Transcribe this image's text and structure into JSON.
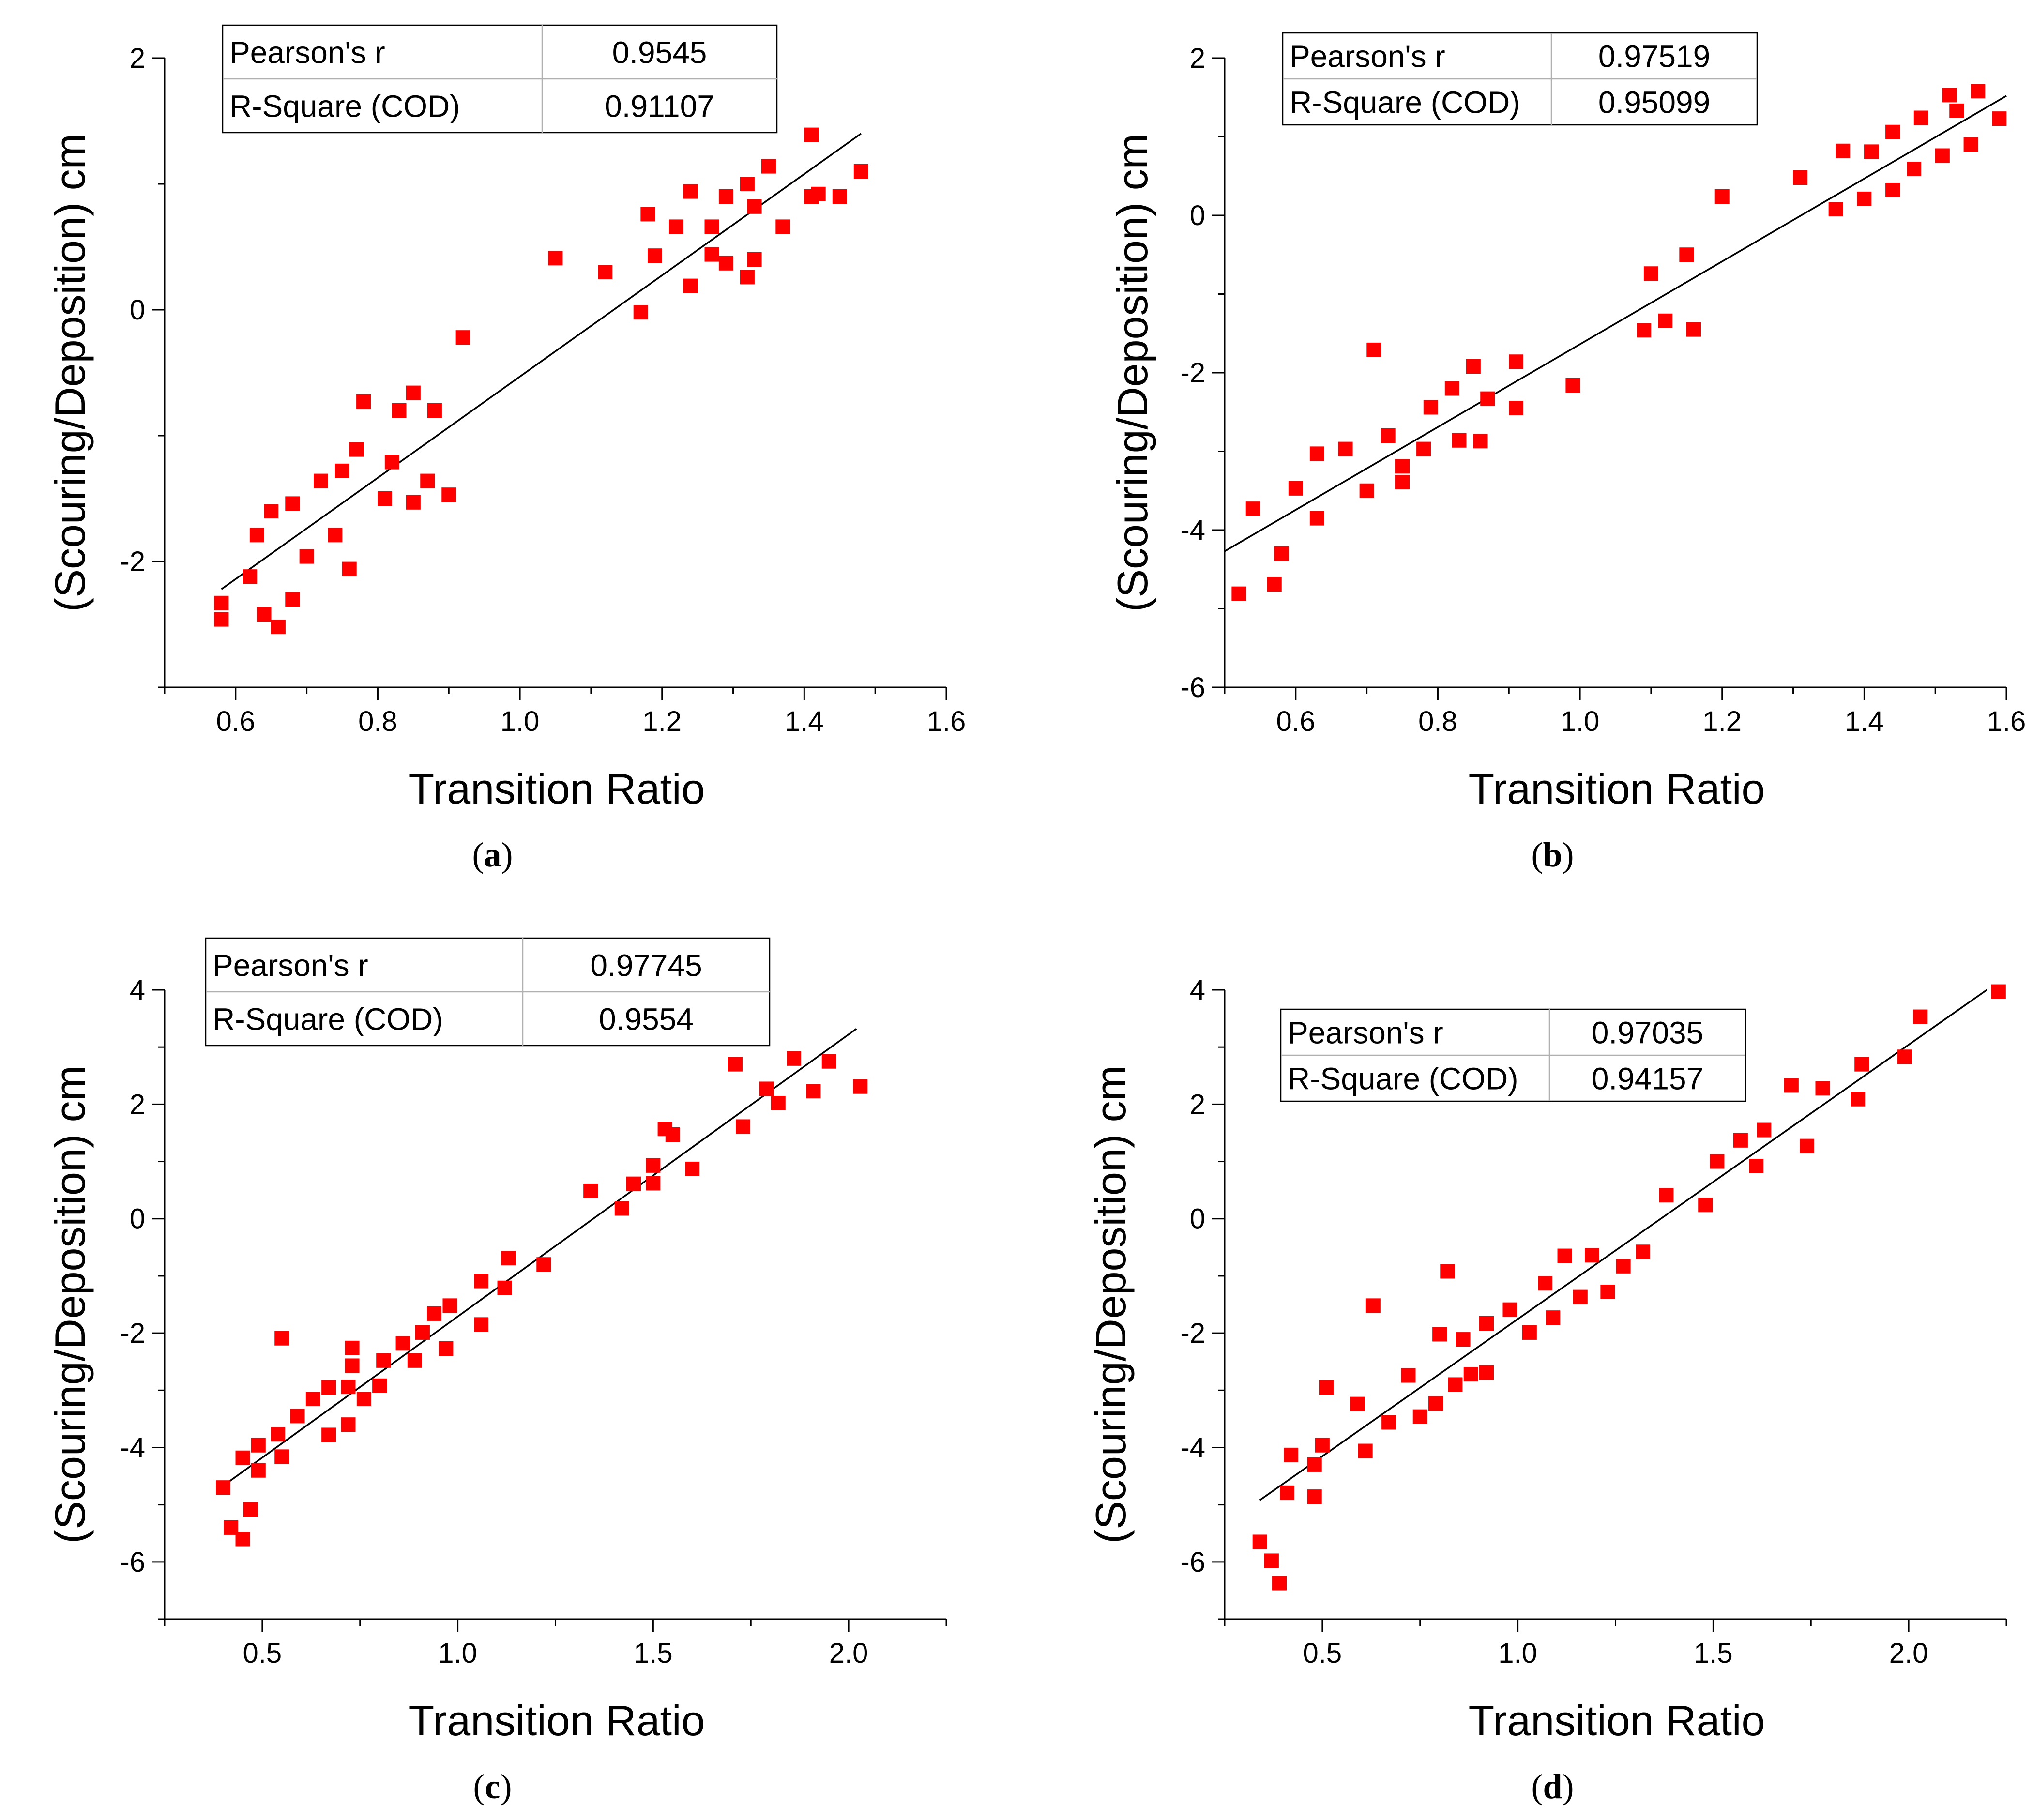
{
  "figure": {
    "panels": [
      "a",
      "b",
      "c",
      "d"
    ]
  },
  "chart_data": [
    {
      "type": "scatter",
      "panel_label": "a",
      "xlabel": "Transition Ratio",
      "ylabel": "(Scouring/Deposition) cm",
      "xlim": [
        0.5,
        1.6
      ],
      "ylim": [
        -3,
        2
      ],
      "xticks": [
        0.6,
        0.8,
        1.0,
        1.2,
        1.4,
        1.6
      ],
      "xtick_labels": [
        "0.6",
        "0.8",
        "1.0",
        "1.2",
        "1.4",
        "1.6"
      ],
      "yticks": [
        -2,
        0,
        2
      ],
      "ytick_labels": [
        "-2",
        "0",
        "2"
      ],
      "stats": {
        "pearson_label": "Pearson's r",
        "pearson_value": "0.9545",
        "r2_label": "R-Square (COD)",
        "r2_value": "0.91107",
        "placement": "top-center"
      },
      "fit_line": [
        [
          0.58,
          -2.22
        ],
        [
          1.48,
          1.4
        ]
      ],
      "x": [
        0.58,
        0.58,
        0.62,
        0.63,
        0.64,
        0.65,
        0.66,
        0.68,
        0.68,
        0.7,
        0.72,
        0.74,
        0.75,
        0.76,
        0.77,
        0.78,
        0.81,
        0.82,
        0.83,
        0.85,
        0.85,
        0.87,
        0.88,
        0.9,
        0.92,
        1.05,
        1.12,
        1.17,
        1.18,
        1.19,
        1.22,
        1.24,
        1.24,
        1.27,
        1.27,
        1.29,
        1.29,
        1.32,
        1.32,
        1.33,
        1.33,
        1.35,
        1.37,
        1.41,
        1.41,
        1.42,
        1.45,
        1.48
      ],
      "y": [
        -2.46,
        -2.33,
        -2.12,
        -1.79,
        -2.42,
        -1.6,
        -2.52,
        -1.54,
        -2.3,
        -1.96,
        -1.36,
        -1.79,
        -1.28,
        -2.06,
        -1.11,
        -0.73,
        -1.5,
        -1.21,
        -0.8,
        -1.53,
        -0.66,
        -1.36,
        -0.8,
        -1.47,
        -0.22,
        0.41,
        0.3,
        -0.02,
        0.76,
        0.43,
        0.66,
        0.19,
        0.94,
        0.44,
        0.66,
        0.37,
        0.9,
        1.0,
        0.26,
        0.82,
        0.4,
        1.14,
        0.66,
        0.9,
        1.39,
        0.92,
        0.9,
        1.1
      ]
    },
    {
      "type": "scatter",
      "panel_label": "b",
      "xlabel": "Transition Ratio",
      "ylabel": "(Scouring/Deposition) cm",
      "xlim": [
        0.5,
        1.6
      ],
      "ylim": [
        -6,
        2
      ],
      "xticks": [
        0.6,
        0.8,
        1.0,
        1.2,
        1.4,
        1.6
      ],
      "xtick_labels": [
        "0.6",
        "0.8",
        "1.0",
        "1.2",
        "1.4",
        "1.6"
      ],
      "yticks": [
        -6,
        -4,
        -2,
        0,
        2
      ],
      "ytick_labels": [
        "-6",
        "-4",
        "-2",
        "0",
        "2"
      ],
      "stats": {
        "pearson_label": "Pearson's r",
        "pearson_value": "0.97519",
        "r2_label": "R-Square (COD)",
        "r2_value": "0.95099",
        "placement": "top-center"
      },
      "fit_line": [
        [
          0.5,
          -4.27
        ],
        [
          1.6,
          1.52
        ]
      ],
      "x": [
        0.52,
        0.54,
        0.57,
        0.58,
        0.6,
        0.63,
        0.63,
        0.67,
        0.7,
        0.71,
        0.73,
        0.75,
        0.75,
        0.78,
        0.79,
        0.82,
        0.83,
        0.85,
        0.86,
        0.87,
        0.91,
        0.91,
        0.99,
        1.09,
        1.1,
        1.12,
        1.15,
        1.16,
        1.2,
        1.31,
        1.36,
        1.37,
        1.4,
        1.41,
        1.44,
        1.44,
        1.47,
        1.48,
        1.51,
        1.52,
        1.53,
        1.55,
        1.56,
        1.59
      ],
      "y": [
        -4.81,
        -3.73,
        -4.69,
        -4.3,
        -3.47,
        -3.85,
        -3.03,
        -2.97,
        -3.5,
        -1.71,
        -2.8,
        -3.39,
        -3.19,
        -2.97,
        -2.44,
        -2.2,
        -2.86,
        -1.92,
        -2.87,
        -2.33,
        -1.86,
        -2.45,
        -2.16,
        -1.46,
        -0.74,
        -1.34,
        -0.5,
        -1.45,
        0.24,
        0.48,
        0.08,
        0.82,
        0.21,
        0.81,
        0.32,
        1.06,
        0.59,
        1.24,
        0.76,
        1.53,
        1.33,
        0.9,
        1.58,
        1.23
      ]
    },
    {
      "type": "scatter",
      "panel_label": "c",
      "xlabel": "Transition Ratio",
      "ylabel": "(Scouring/Deposition) cm",
      "xlim": [
        0.25,
        2.25
      ],
      "ylim": [
        -7,
        4
      ],
      "xticks": [
        0.5,
        1.0,
        1.5,
        2.0
      ],
      "xtick_labels": [
        "0.5",
        "1.0",
        "1.5",
        "2.0"
      ],
      "yticks": [
        -6,
        -4,
        -2,
        0,
        2,
        4
      ],
      "ytick_labels": [
        "-6",
        "-4",
        "-2",
        "0",
        "2",
        "4"
      ],
      "stats": {
        "pearson_label": "Pearson's r",
        "pearson_value": "0.97745",
        "r2_label": "R-Square (COD)",
        "r2_value": "0.9554",
        "placement": "top-center"
      },
      "fit_line": [
        [
          0.41,
          -4.62
        ],
        [
          2.02,
          3.32
        ]
      ],
      "x": [
        0.4,
        0.42,
        0.45,
        0.45,
        0.47,
        0.49,
        0.49,
        0.54,
        0.55,
        0.55,
        0.59,
        0.63,
        0.67,
        0.67,
        0.72,
        0.72,
        0.73,
        0.73,
        0.76,
        0.8,
        0.81,
        0.86,
        0.89,
        0.91,
        0.94,
        0.97,
        0.98,
        1.06,
        1.06,
        1.12,
        1.13,
        1.22,
        1.34,
        1.42,
        1.45,
        1.5,
        1.5,
        1.53,
        1.55,
        1.6,
        1.71,
        1.73,
        1.79,
        1.82,
        1.86,
        1.91,
        1.95,
        2.03
      ],
      "y": [
        -4.7,
        -5.4,
        -4.18,
        -5.6,
        -5.08,
        -3.96,
        -4.4,
        -3.77,
        -2.09,
        -4.16,
        -3.45,
        -3.15,
        -2.95,
        -3.78,
        -2.94,
        -3.6,
        -2.26,
        -2.57,
        -3.15,
        -2.92,
        -2.48,
        -2.18,
        -2.48,
        -1.99,
        -1.66,
        -2.27,
        -1.52,
        -1.09,
        -1.85,
        -1.21,
        -0.69,
        -0.8,
        0.48,
        0.18,
        0.61,
        0.62,
        0.93,
        1.57,
        1.47,
        0.87,
        2.7,
        1.61,
        2.27,
        2.02,
        2.8,
        2.23,
        2.75,
        2.31
      ]
    },
    {
      "type": "scatter",
      "panel_label": "d",
      "xlabel": "Transition Ratio",
      "ylabel": "(Scouring/Deposition) cm",
      "xlim": [
        0.25,
        2.25
      ],
      "ylim": [
        -7,
        4
      ],
      "xticks": [
        0.5,
        1.0,
        1.5,
        2.0
      ],
      "xtick_labels": [
        "0.5",
        "1.0",
        "1.5",
        "2.0"
      ],
      "yticks": [
        -6,
        -4,
        -2,
        0,
        2,
        4
      ],
      "ytick_labels": [
        "-6",
        "-4",
        "-2",
        "0",
        "2",
        "4"
      ],
      "stats": {
        "pearson_label": "Pearson's r",
        "pearson_value": "0.97035",
        "r2_label": "R-Square (COD)",
        "r2_value": "0.94157",
        "placement": "top-left"
      },
      "fit_line": [
        [
          0.34,
          -4.92
        ],
        [
          2.2,
          4.0
        ]
      ],
      "x": [
        0.34,
        0.37,
        0.39,
        0.41,
        0.42,
        0.48,
        0.48,
        0.5,
        0.51,
        0.59,
        0.61,
        0.63,
        0.67,
        0.72,
        0.75,
        0.79,
        0.8,
        0.82,
        0.84,
        0.86,
        0.88,
        0.92,
        0.92,
        0.98,
        1.03,
        1.07,
        1.09,
        1.12,
        1.16,
        1.19,
        1.23,
        1.27,
        1.32,
        1.38,
        1.48,
        1.51,
        1.57,
        1.61,
        1.63,
        1.7,
        1.74,
        1.78,
        1.87,
        1.88,
        1.99,
        2.03,
        2.23
      ],
      "y": [
        -5.65,
        -5.98,
        -6.37,
        -4.79,
        -4.13,
        -4.3,
        -4.86,
        -3.96,
        -2.95,
        -3.24,
        -4.06,
        -1.52,
        -3.56,
        -2.74,
        -3.46,
        -3.23,
        -2.02,
        -0.92,
        -2.9,
        -2.11,
        -2.72,
        -2.69,
        -1.83,
        -1.59,
        -1.99,
        -1.13,
        -1.73,
        -0.65,
        -1.37,
        -0.64,
        -1.28,
        -0.83,
        -0.58,
        0.41,
        0.24,
        1.0,
        1.37,
        0.92,
        1.55,
        2.33,
        1.27,
        2.28,
        2.09,
        2.7,
        2.83,
        3.53,
        3.97
      ]
    }
  ]
}
